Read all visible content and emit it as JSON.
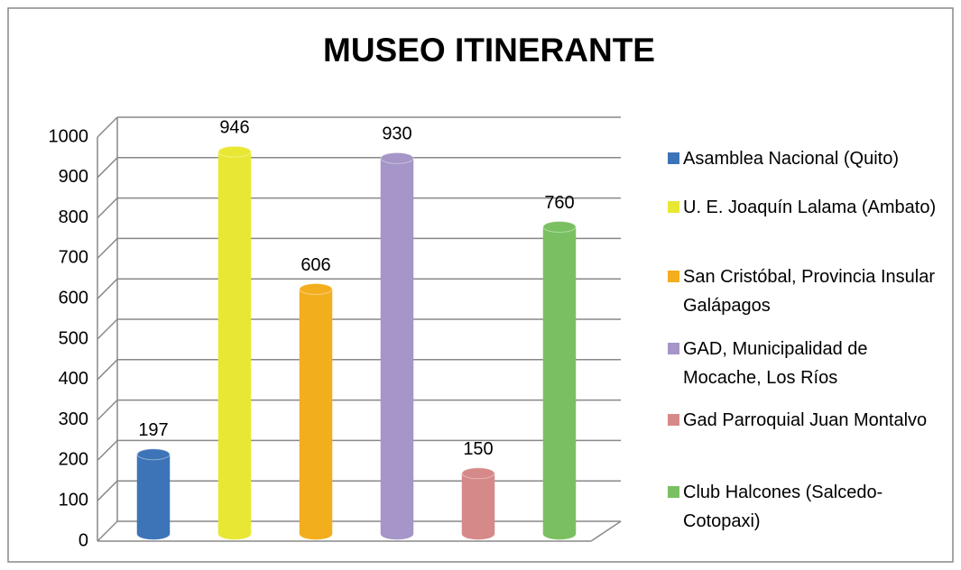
{
  "chart_data": {
    "type": "bar",
    "title": "MUSEO ITINERANTE",
    "categories": [
      "Asamblea Nacional (Quito)",
      "U. E. Joaquín Lalama (Ambato)",
      "San Cristóbal, Provincia Insular Galápagos",
      "GAD, Municipalidad de Mocache, Los Ríos",
      "Gad Parroquial Juan Montalvo",
      "Club Halcones (Salcedo-Cotopaxi)"
    ],
    "values": [
      197,
      946,
      606,
      930,
      150,
      760
    ],
    "colors": [
      "#3d74b8",
      "#e8e834",
      "#f3ae1e",
      "#a595c8",
      "#d68989",
      "#7ac062"
    ],
    "ylim": [
      0,
      1000
    ],
    "yticks": [
      0,
      100,
      200,
      300,
      400,
      500,
      600,
      700,
      800,
      900,
      1000
    ],
    "grid": true,
    "legend": "right"
  }
}
